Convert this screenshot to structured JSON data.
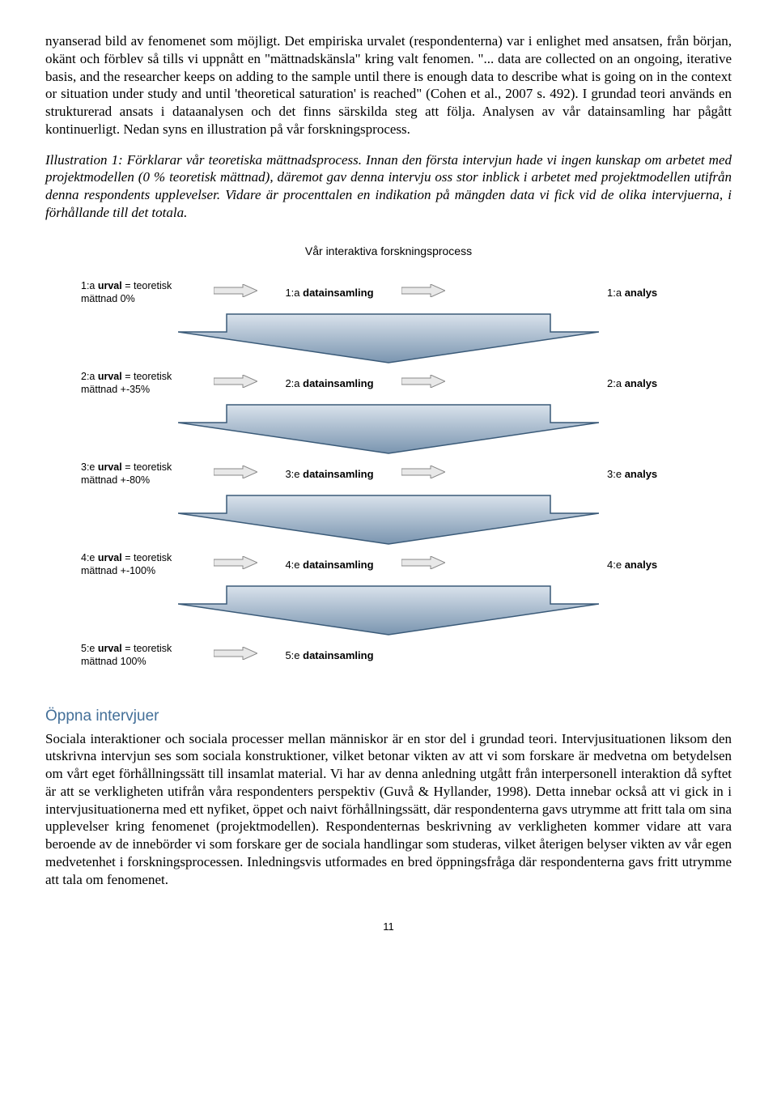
{
  "para1": "nyanserad bild av fenomenet som möjligt. Det empiriska urvalet (respondenterna) var i enlighet med ansatsen, från början, okänt och förblev så tills vi uppnått en \"mättnadskänsla\" kring valt fenomen. \"... data are collected on an ongoing, iterative basis, and the researcher keeps on adding to the sample until there is enough data to describe what is going on in the context or situation under study and until 'theoretical saturation' is reached\" (Cohen et al., 2007 s. 492). I grundad teori används en strukturerad ansats i dataanalysen och det finns särskilda steg att följa. Analysen av vår datainsamling har pågått kontinuerligt. Nedan syns en illustration på vår forskningsprocess.",
  "para2": "Illustration 1: Förklarar vår teoretiska mättnadsprocess. Innan den första intervjun hade vi ingen kunskap om arbetet med projektmodellen (0 % teoretisk mättnad), däremot gav denna intervju oss stor inblick i arbetet med projektmodellen utifrån denna respondents upplevelser. Vidare är procenttalen en indikation på mängden data vi fick vid de olika intervjuerna, i förhållande till det totala.",
  "diagram": {
    "title": "Vår interaktiva forskningsprocess",
    "steps": [
      {
        "urval_pre": "1:a ",
        "urval_bold": "urval",
        "urval_post": " = teoretisk",
        "urval_line2": "mättnad 0%",
        "ds_pre": "1:a ",
        "ds_bold": "datainsamling",
        "an_pre": "1:a ",
        "an_bold": "analys"
      },
      {
        "urval_pre": "2:a ",
        "urval_bold": "urval",
        "urval_post": " = teoretisk",
        "urval_line2": "mättnad +-35%",
        "ds_pre": "2:a ",
        "ds_bold": "datainsamling",
        "an_pre": "2:a ",
        "an_bold": "analys"
      },
      {
        "urval_pre": "3:e ",
        "urval_bold": "urval",
        "urval_post": " = teoretisk",
        "urval_line2": "mättnad +-80%",
        "ds_pre": "3:e ",
        "ds_bold": "datainsamling",
        "an_pre": "3:e ",
        "an_bold": "analys"
      },
      {
        "urval_pre": "4:e ",
        "urval_bold": "urval",
        "urval_post": " = teoretisk",
        "urval_line2": "mättnad +-100%",
        "ds_pre": "4:e ",
        "ds_bold": "datainsamling",
        "an_pre": "4:e ",
        "an_bold": "analys"
      },
      {
        "urval_pre": "5:e ",
        "urval_bold": "urval",
        "urval_post": " = teoretisk",
        "urval_line2": "mättnad 100%",
        "ds_pre": "5:e ",
        "ds_bold": "datainsamling",
        "an_pre": "",
        "an_bold": ""
      }
    ],
    "colors": {
      "small_arrow_fill": "#e8e8e8",
      "small_arrow_stroke": "#888888",
      "big_arrow_fill_top": "#d9e2ec",
      "big_arrow_fill_bottom": "#7a95b0",
      "big_arrow_stroke": "#3a5a78"
    }
  },
  "section_title": "Öppna intervjuer",
  "para3": "Sociala interaktioner och sociala processer mellan människor är en stor del i grundad teori. Intervjusituationen liksom den utskrivna intervjun ses som sociala konstruktioner, vilket betonar vikten av att vi som forskare är medvetna om betydelsen om vårt eget förhållningssätt till insamlat material. Vi har av denna anledning utgått från interpersonell interaktion då syftet är att se verkligheten utifrån våra respondenters perspektiv (Guvå & Hyllander, 1998). Detta innebar också att vi gick in i intervjusituationerna med ett nyfiket, öppet och naivt förhållningssätt, där respondenterna gavs utrymme att fritt tala om sina upplevelser kring fenomenet (projektmodellen). Respondenternas beskrivning av verkligheten kommer vidare att vara beroende av de innebörder vi som forskare ger de sociala handlingar som studeras, vilket återigen belyser vikten av vår egen medvetenhet i forskningsprocessen. Inledningsvis utformades en bred öppningsfråga där respondenterna gavs fritt utrymme att tala om fenomenet.",
  "page_number": "11"
}
